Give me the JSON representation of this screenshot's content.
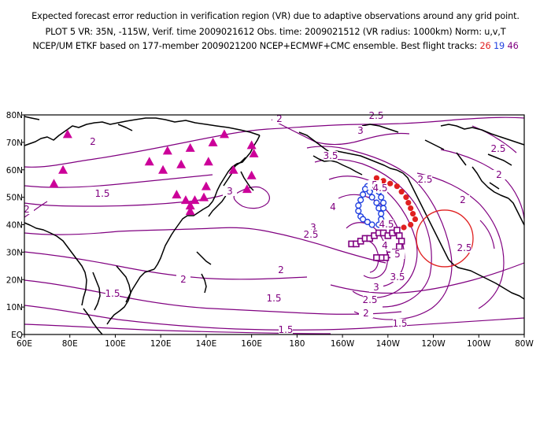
{
  "header": {
    "line1": "Expected forecast error reduction in verification region (VR) due to adaptive observations around any grid point.",
    "line2": "PLOT 5 VR: 35N, -115W, Verif. time 2009021612 Obs. time: 2009021512 (VR radius: 1000km) Norm: u,v,T",
    "line3_prefix": "NCEP/UM ETKF based on 177-member 2009021200 NCEP+ECMWF+CMC ensemble. Best flight tracks:",
    "track_labels": [
      "26",
      "19",
      "46"
    ]
  },
  "axes": {
    "x_ticks": [
      "60E",
      "80E",
      "100E",
      "120E",
      "140E",
      "160E",
      "180",
      "160W",
      "140W",
      "120W",
      "100W",
      "80W"
    ],
    "y_ticks": [
      "EQ",
      "10N",
      "20N",
      "30N",
      "40N",
      "50N",
      "60N",
      "70N",
      "80N"
    ]
  },
  "colors": {
    "contour": "#800080",
    "coast": "#000000",
    "track_26": "#e02020",
    "track_19": "#2040e0",
    "track_46": "#800080",
    "triangles": "#cc0099",
    "vr_circle": "#e02020"
  },
  "contour_labels": [
    {
      "text": "2.5"
    },
    {
      "text": "2"
    },
    {
      "text": "3"
    },
    {
      "text": "2.5"
    },
    {
      "text": "2"
    },
    {
      "text": "3.5"
    },
    {
      "text": "1.5"
    },
    {
      "text": "3"
    },
    {
      "text": "2"
    },
    {
      "text": "4"
    },
    {
      "text": "2"
    },
    {
      "text": "3"
    },
    {
      "text": "2.5"
    },
    {
      "text": "4.5"
    },
    {
      "text": "5"
    },
    {
      "text": "4"
    },
    {
      "text": "3.5"
    },
    {
      "text": "3"
    },
    {
      "text": "2.5"
    },
    {
      "text": "2"
    },
    {
      "text": "2.5"
    },
    {
      "text": "1.5"
    },
    {
      "text": "1.5"
    },
    {
      "text": "2"
    },
    {
      "text": "1.5"
    },
    {
      "text": "1.5"
    },
    {
      "text": "2"
    },
    {
      "text": "2.5"
    },
    {
      "text": "2"
    },
    {
      "text": "5"
    },
    {
      "text": "4.5"
    }
  ],
  "map_features": {
    "vr_circle": {
      "lon": -115,
      "lat": 35,
      "radius_km": 1000
    },
    "track_26": [
      [
        -145,
        57
      ],
      [
        -142,
        56
      ],
      [
        -139,
        55
      ],
      [
        -136,
        54
      ],
      [
        -134,
        52
      ],
      [
        -132,
        50
      ],
      [
        -131,
        48
      ],
      [
        -130,
        46
      ],
      [
        -129,
        44
      ],
      [
        -128,
        42
      ],
      [
        -130,
        40
      ],
      [
        -133,
        39
      ]
    ],
    "track_19": [
      [
        -149,
        54
      ],
      [
        -150,
        53
      ],
      [
        -151,
        51
      ],
      [
        -152,
        49
      ],
      [
        -153,
        47
      ],
      [
        -153,
        45
      ],
      [
        -152,
        43
      ],
      [
        -151,
        42
      ],
      [
        -149,
        41
      ],
      [
        -147,
        40
      ],
      [
        -144,
        40
      ],
      [
        -143,
        42
      ],
      [
        -143,
        44
      ],
      [
        -144,
        46
      ],
      [
        -145,
        48
      ],
      [
        -147,
        50
      ],
      [
        -148,
        52
      ],
      [
        -146,
        53
      ],
      [
        -144,
        52
      ],
      [
        -143,
        50
      ],
      [
        -142,
        48
      ],
      [
        -142,
        46
      ]
    ],
    "track_46": [
      [
        -156,
        33
      ],
      [
        -154,
        33
      ],
      [
        -152,
        34
      ],
      [
        -150,
        35
      ],
      [
        -148,
        35
      ],
      [
        -146,
        36
      ],
      [
        -144,
        37
      ],
      [
        -142,
        37
      ],
      [
        -140,
        36
      ],
      [
        -138,
        37
      ],
      [
        -136,
        38
      ],
      [
        -135,
        36
      ],
      [
        -134,
        34
      ],
      [
        -135,
        32
      ],
      [
        -137,
        30
      ],
      [
        -139,
        29
      ],
      [
        -141,
        28
      ],
      [
        -143,
        28
      ],
      [
        -145,
        28
      ]
    ],
    "triangles": [
      [
        73,
        55
      ],
      [
        77,
        60
      ],
      [
        79,
        73
      ],
      [
        115,
        63
      ],
      [
        121,
        60
      ],
      [
        123,
        67
      ],
      [
        129,
        62
      ],
      [
        133,
        68
      ],
      [
        143,
        70
      ],
      [
        148,
        73
      ],
      [
        152,
        60
      ],
      [
        160,
        69
      ],
      [
        161,
        66
      ],
      [
        160,
        58
      ],
      [
        158,
        53
      ],
      [
        141,
        63
      ],
      [
        140,
        54
      ],
      [
        131,
        49
      ],
      [
        133,
        47
      ],
      [
        135,
        49
      ],
      [
        139,
        50
      ],
      [
        127,
        51
      ],
      [
        133,
        45
      ]
    ]
  }
}
